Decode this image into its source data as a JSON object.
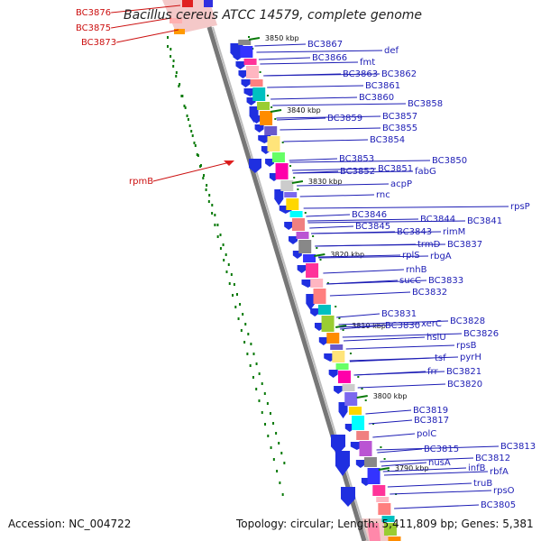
{
  "title": "Bacillus cereus ATCC 14579, complete genome",
  "footer": {
    "accession": "Accession: NC_004722",
    "topology": "Topology: circular; Length: 5,411,809 bp; Genes: 5,381"
  },
  "colors": {
    "forward_arrow": "#1f2fe0",
    "reverse_label": "#cc1111",
    "forward_label": "#1d1db5",
    "dots": "#0a7a0a"
  },
  "ticks": [
    "3850 kbp",
    "3840 kbp",
    "3830 kbp",
    "3820 kbp",
    "3810 kbp",
    "3800 kbp",
    "3790 kbp"
  ],
  "red_labels": [
    "BC3876",
    "BC3875",
    "BC3873",
    "rpmB"
  ],
  "blue_labels": [
    "BC3867",
    "def",
    "BC3866",
    "fmt",
    "BC3863",
    "BC3862",
    "BC3861",
    "BC3860",
    "BC3858",
    "BC3859",
    "BC3857",
    "BC3855",
    "BC3854",
    "BC3853",
    "BC3850",
    "BC3852",
    "BC3851",
    "fabG",
    "acpP",
    "rnc",
    "rpsP",
    "BC3846",
    "BC3844",
    "BC3841",
    "BC3845",
    "BC3843",
    "rimM",
    "trmD",
    "BC3837",
    "rplS",
    "rbgA",
    "rnhB",
    "sucC",
    "BC3833",
    "BC3832",
    "BC3831",
    "xerC",
    "BC3828",
    "BC3830",
    "hslU",
    "BC3826",
    "rpsB",
    "tsf",
    "pyrH",
    "frr",
    "BC3821",
    "BC3820",
    "BC3819",
    "BC3817",
    "polC",
    "BC3815",
    "BC3813",
    "nusA",
    "BC3812",
    "infB",
    "rbfA",
    "truB",
    "rpsO",
    "BC3805"
  ]
}
